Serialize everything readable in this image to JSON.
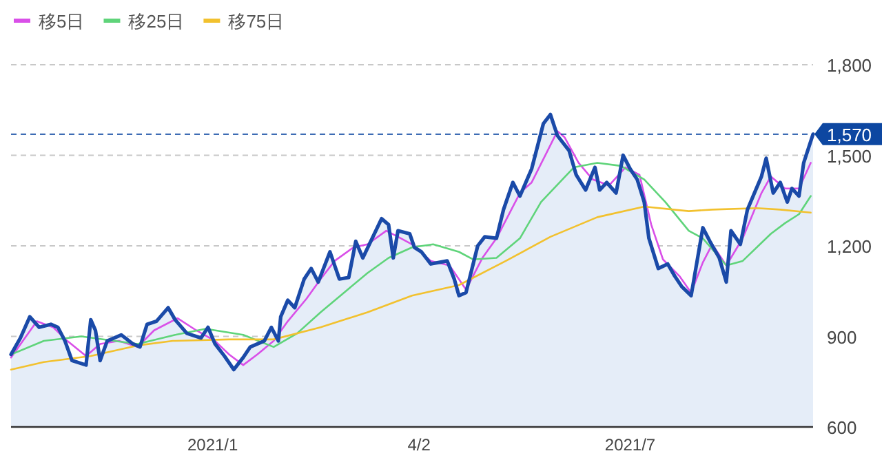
{
  "chart_data": {
    "type": "line",
    "legend": "top left",
    "grid": "y",
    "xlim": [
      "2020-10-10",
      "2021-09-17"
    ],
    "xticks": [
      {
        "value": "2021-01-04",
        "label": "2021/1"
      },
      {
        "value": "2021-04-02",
        "label": "4/2"
      },
      {
        "value": "2021-07-01",
        "label": "2021/7"
      }
    ],
    "ylim": [
      600,
      1800
    ],
    "yticks": [
      600,
      900,
      {
        "value": 1200,
        "label": "1,200"
      },
      {
        "value": 1500,
        "label": "1,500"
      },
      {
        "value": 1800,
        "label": "1,800"
      }
    ],
    "ref_lines": [
      {
        "axis": "y",
        "value": 1570,
        "label": "1,570",
        "color": "#0d47a1",
        "line_style": "dashed"
      }
    ],
    "series": [
      {
        "type": "area",
        "color": "#1a4aa8",
        "x": [
          "2020-10-10",
          "2020-10-14",
          "2020-10-18",
          "2020-10-22",
          "2020-10-27",
          "2020-10-30",
          "2020-11-02",
          "2020-11-05",
          "2020-11-11",
          "2020-11-13",
          "2020-11-15",
          "2020-11-17",
          "2020-11-20",
          "2020-11-26",
          "2020-12-01",
          "2020-12-04",
          "2020-12-07",
          "2020-12-11",
          "2020-12-16",
          "2020-12-19",
          "2020-12-24",
          "2020-12-30",
          "2021-01-02",
          "2021-01-05",
          "2021-01-09",
          "2021-01-13",
          "2021-01-17",
          "2021-01-20",
          "2021-01-26",
          "2021-01-29",
          "2021-02-01",
          "2021-02-02",
          "2021-02-05",
          "2021-02-08",
          "2021-02-12",
          "2021-02-15",
          "2021-02-18",
          "2021-02-23",
          "2021-02-27",
          "2021-03-03",
          "2021-03-06",
          "2021-03-09",
          "2021-03-17",
          "2021-03-20",
          "2021-03-22",
          "2021-03-24",
          "2021-03-29",
          "2021-03-31",
          "2021-04-03",
          "2021-04-07",
          "2021-04-14",
          "2021-04-17",
          "2021-04-19",
          "2021-04-22",
          "2021-04-27",
          "2021-04-30",
          "2021-05-05",
          "2021-05-08",
          "2021-05-12",
          "2021-05-15",
          "2021-05-20",
          "2021-05-25",
          "2021-05-28",
          "2021-05-31",
          "2021-06-05",
          "2021-06-08",
          "2021-06-12",
          "2021-06-16",
          "2021-06-18",
          "2021-06-21",
          "2021-06-25",
          "2021-06-28",
          "2021-07-01",
          "2021-07-04",
          "2021-07-07",
          "2021-07-09",
          "2021-07-13",
          "2021-07-17",
          "2021-07-20",
          "2021-07-23",
          "2021-07-27",
          "2021-08-01",
          "2021-08-04",
          "2021-08-08",
          "2021-08-11",
          "2021-08-13",
          "2021-08-17",
          "2021-08-20",
          "2021-08-23",
          "2021-08-26",
          "2021-08-28",
          "2021-08-31",
          "2021-09-03",
          "2021-09-06",
          "2021-09-08",
          "2021-09-11",
          "2021-09-13",
          "2021-09-17"
        ],
        "values": [
          840,
          895,
          965,
          930,
          940,
          930,
          885,
          820,
          805,
          955,
          920,
          820,
          885,
          905,
          875,
          865,
          940,
          950,
          995,
          955,
          910,
          895,
          930,
          875,
          835,
          790,
          830,
          865,
          885,
          930,
          885,
          965,
          1020,
          995,
          1090,
          1125,
          1080,
          1180,
          1090,
          1095,
          1215,
          1160,
          1290,
          1270,
          1160,
          1250,
          1240,
          1195,
          1180,
          1140,
          1150,
          1090,
          1035,
          1045,
          1200,
          1230,
          1225,
          1320,
          1410,
          1365,
          1455,
          1605,
          1635,
          1565,
          1515,
          1435,
          1385,
          1460,
          1385,
          1410,
          1375,
          1500,
          1455,
          1420,
          1345,
          1225,
          1125,
          1140,
          1100,
          1065,
          1035,
          1260,
          1215,
          1160,
          1080,
          1250,
          1205,
          1320,
          1375,
          1430,
          1490,
          1375,
          1410,
          1345,
          1390,
          1365,
          1475,
          1570
        ]
      },
      {
        "name": "移5日",
        "color": "#d94fe8",
        "x": [
          "2020-10-10",
          "2020-10-21",
          "2020-10-28",
          "2020-11-03",
          "2020-11-11",
          "2020-11-17",
          "2020-11-25",
          "2020-12-03",
          "2020-12-10",
          "2020-12-20",
          "2020-12-28",
          "2021-01-05",
          "2021-01-11",
          "2021-01-17",
          "2021-01-23",
          "2021-01-30",
          "2021-02-05",
          "2021-02-13",
          "2021-02-19",
          "2021-02-25",
          "2021-03-05",
          "2021-03-11",
          "2021-03-19",
          "2021-03-24",
          "2021-03-30",
          "2021-04-07",
          "2021-04-15",
          "2021-04-22",
          "2021-04-29",
          "2021-05-05",
          "2021-05-15",
          "2021-05-20",
          "2021-05-31",
          "2021-06-03",
          "2021-06-09",
          "2021-06-15",
          "2021-06-22",
          "2021-06-29",
          "2021-07-05",
          "2021-07-10",
          "2021-07-15",
          "2021-07-22",
          "2021-07-27",
          "2021-08-01",
          "2021-08-05",
          "2021-08-11",
          "2021-08-18",
          "2021-08-26",
          "2021-08-30",
          "2021-09-05",
          "2021-09-11",
          "2021-09-16"
        ],
        "values": [
          830,
          950,
          930,
          885,
          835,
          875,
          885,
          865,
          920,
          960,
          920,
          885,
          840,
          805,
          840,
          885,
          950,
          1025,
          1090,
          1150,
          1195,
          1205,
          1250,
          1230,
          1205,
          1150,
          1135,
          1055,
          1160,
          1225,
          1375,
          1410,
          1580,
          1560,
          1475,
          1420,
          1400,
          1460,
          1435,
          1270,
          1155,
          1100,
          1045,
          1145,
          1205,
          1135,
          1225,
          1375,
          1430,
          1390,
          1390,
          1475
        ]
      },
      {
        "name": "移25日",
        "color": "#5fd47a",
        "x": [
          "2020-10-10",
          "2020-10-24",
          "2020-11-09",
          "2020-11-23",
          "2020-12-03",
          "2020-12-19",
          "2021-01-01",
          "2021-01-17",
          "2021-01-30",
          "2021-02-09",
          "2021-02-19",
          "2021-03-01",
          "2021-03-11",
          "2021-03-20",
          "2021-03-30",
          "2021-04-08",
          "2021-04-19",
          "2021-04-25",
          "2021-05-05",
          "2021-05-15",
          "2021-05-24",
          "2021-06-07",
          "2021-06-17",
          "2021-06-27",
          "2021-07-07",
          "2021-07-16",
          "2021-07-26",
          "2021-08-01",
          "2021-08-11",
          "2021-08-18",
          "2021-08-30",
          "2021-09-05",
          "2021-09-11",
          "2021-09-16"
        ],
        "values": [
          840,
          885,
          900,
          885,
          875,
          905,
          925,
          905,
          865,
          910,
          980,
          1045,
          1110,
          1160,
          1195,
          1205,
          1180,
          1155,
          1160,
          1225,
          1345,
          1460,
          1475,
          1465,
          1420,
          1345,
          1250,
          1225,
          1135,
          1150,
          1240,
          1275,
          1305,
          1365
        ]
      },
      {
        "name": "移75日",
        "color": "#f2c12e",
        "x": [
          "2020-10-10",
          "2020-10-24",
          "2020-11-13",
          "2020-12-03",
          "2020-12-18",
          "2021-01-11",
          "2021-01-30",
          "2021-02-19",
          "2021-03-11",
          "2021-03-30",
          "2021-04-19",
          "2021-05-09",
          "2021-05-28",
          "2021-06-17",
          "2021-07-07",
          "2021-07-26",
          "2021-08-05",
          "2021-08-24",
          "2021-09-03",
          "2021-09-16"
        ],
        "values": [
          790,
          815,
          835,
          870,
          885,
          890,
          890,
          930,
          980,
          1035,
          1070,
          1150,
          1230,
          1295,
          1330,
          1315,
          1320,
          1325,
          1320,
          1310
        ]
      }
    ]
  }
}
